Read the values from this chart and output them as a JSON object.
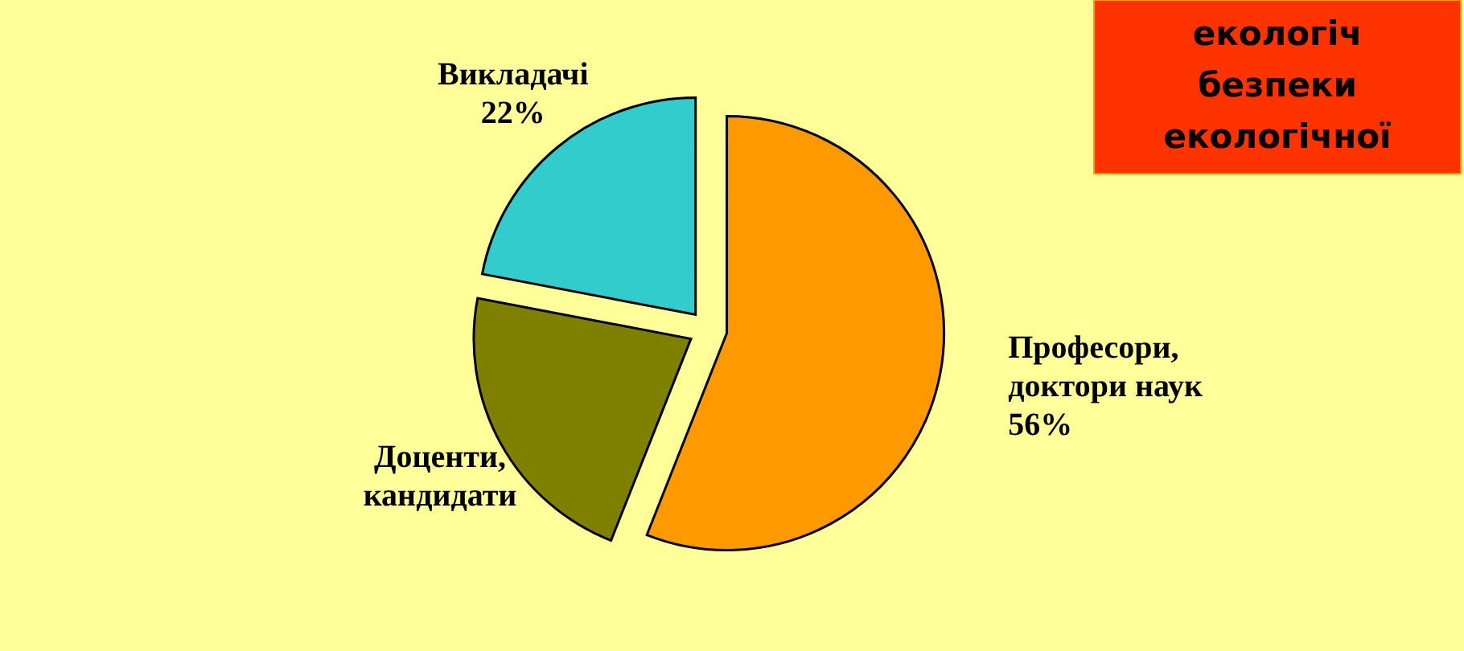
{
  "chart_data": {
    "type": "pie",
    "categories": [
      "Професори,\nдоктори наук",
      "Доценти,\nкандидати",
      "Викладачі"
    ],
    "values": [
      56,
      22,
      22
    ],
    "value_labels": [
      "56%",
      null,
      "22%"
    ],
    "colors": [
      "#ff9900",
      "#808000",
      "#33cccc"
    ],
    "annotations": [
      "екологіч\nбезпеки\nекологічної"
    ]
  }
}
